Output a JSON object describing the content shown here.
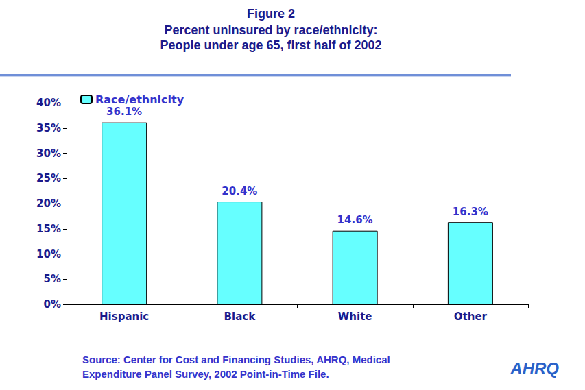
{
  "chart_data": {
    "type": "bar",
    "title": "Figure 2",
    "subtitle": "Percent uninsured by race/ethnicity:\nPeople under age 65, first half of 2002",
    "categories": [
      "Hispanic",
      "Black",
      "White",
      "Other"
    ],
    "series": [
      {
        "name": "Race/ethnicity",
        "color": "#66ffff",
        "values": [
          36.1,
          20.4,
          14.6,
          16.3
        ],
        "value_labels": [
          "36.1%",
          "20.4%",
          "14.6%",
          "16.3%"
        ]
      }
    ],
    "ylim": [
      0,
      40
    ],
    "yticks": [
      {
        "value": 0,
        "label": "0%"
      },
      {
        "value": 5,
        "label": "5%"
      },
      {
        "value": 10,
        "label": "10%"
      },
      {
        "value": 15,
        "label": "15%"
      },
      {
        "value": 20,
        "label": "20%"
      },
      {
        "value": 25,
        "label": "25%"
      },
      {
        "value": 30,
        "label": "30%"
      },
      {
        "value": 35,
        "label": "35%"
      },
      {
        "value": 40,
        "label": "40%"
      }
    ],
    "grid": false,
    "legend": "top-left",
    "data_labels": true,
    "source": "Source: Center for Cost and Financing Studies, AHRQ, Medical\nExpenditure Panel Survey, 2002 Point-in-Time File.",
    "logo": "AHRQ"
  }
}
